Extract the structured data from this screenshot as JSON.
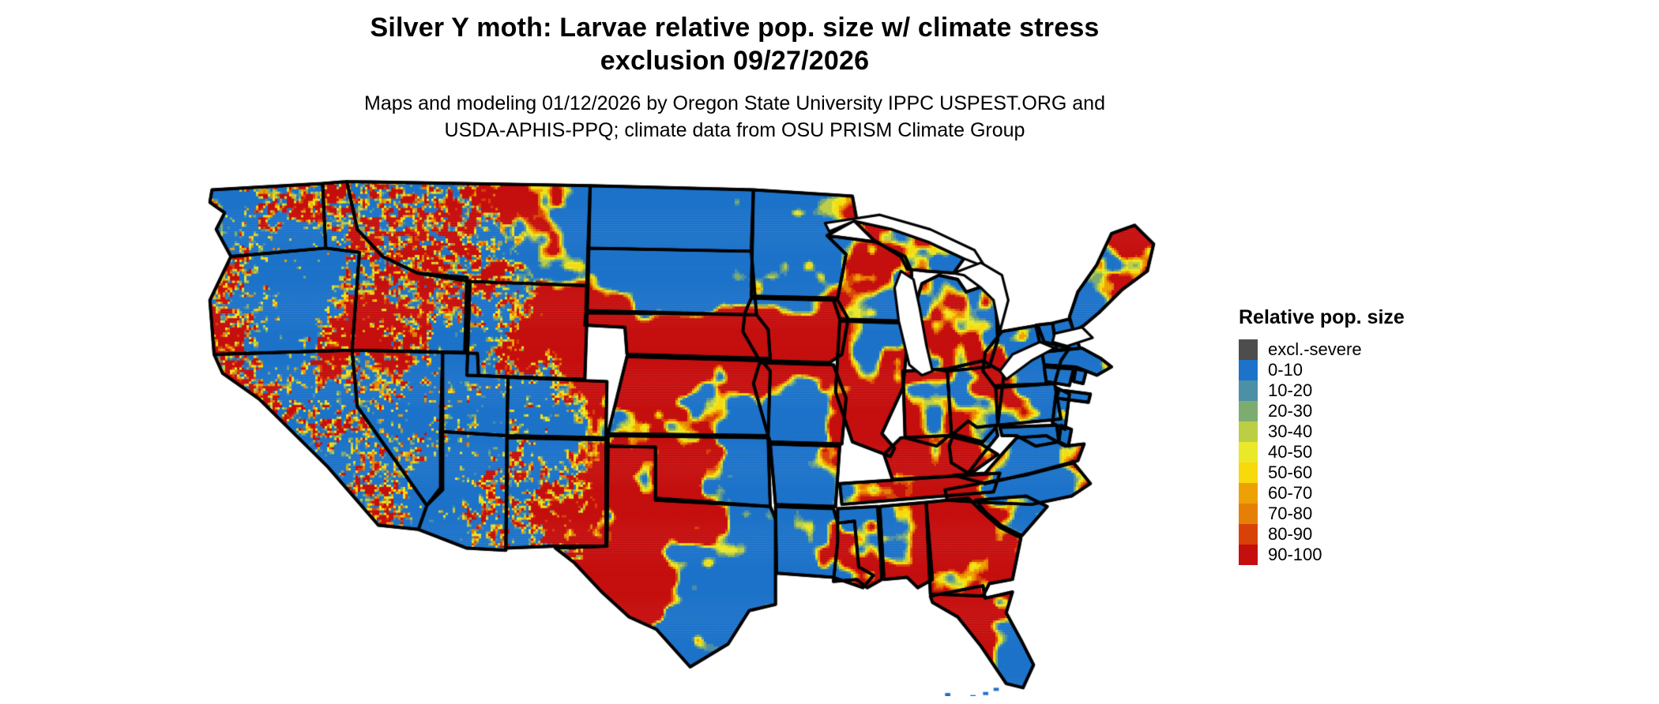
{
  "header": {
    "title_line1": "Silver Y moth: Larvae relative pop. size w/ climate stress",
    "title_line2": "exclusion 09/27/2026",
    "subtitle_line1": "Maps and modeling 01/12/2026 by Oregon State University IPPC USPEST.ORG and",
    "subtitle_line2": "USDA-APHIS-PPQ; climate data from OSU PRISM Climate Group"
  },
  "legend": {
    "title": "Relative pop. size",
    "entries": [
      {
        "label": "excl.-severe",
        "color": "#4d4d4d"
      },
      {
        "label": "0-10",
        "color": "#1d73c9"
      },
      {
        "label": "10-20",
        "color": "#4d8fa5"
      },
      {
        "label": "20-30",
        "color": "#7dac71"
      },
      {
        "label": "30-40",
        "color": "#bccf44"
      },
      {
        "label": "40-50",
        "color": "#e9e829"
      },
      {
        "label": "50-60",
        "color": "#f8d90c"
      },
      {
        "label": "60-70",
        "color": "#eea105"
      },
      {
        "label": "70-80",
        "color": "#e67f05"
      },
      {
        "label": "80-90",
        "color": "#d94206"
      },
      {
        "label": "90-100",
        "color": "#c50f0f"
      }
    ]
  },
  "map": {
    "area": "contiguous-united-states",
    "border_color": "#000000",
    "water_color": "#ffffff"
  }
}
